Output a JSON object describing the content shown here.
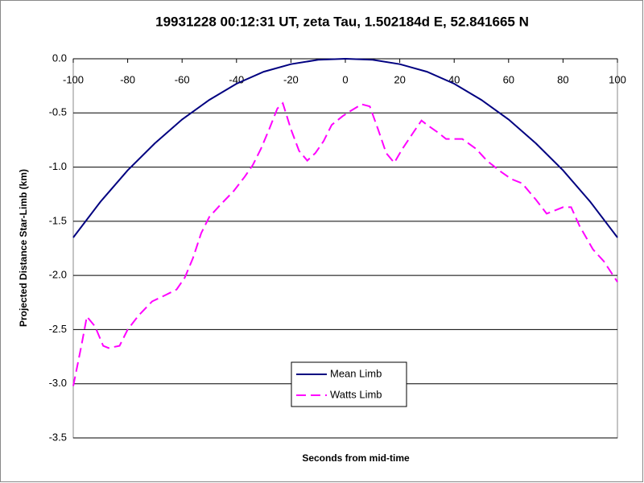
{
  "chart_data": {
    "type": "line",
    "title": "19931228 00:12:31 UT, zeta Tau, 1.502184d E, 52.841665 N",
    "x_label": "Seconds from mid-time",
    "y_label": "Projected Distance Star-Limb (km)",
    "xlim": [
      -100,
      100
    ],
    "xticks": [
      -100,
      -80,
      -60,
      -40,
      -20,
      0,
      20,
      40,
      60,
      80,
      100
    ],
    "ylim": [
      -3.5,
      0
    ],
    "yticks": [
      {
        "value": 0,
        "label": "0.0"
      },
      -0.5,
      {
        "value": -1,
        "label": "-1.0"
      },
      -1.5,
      {
        "value": -2,
        "label": "-2.0"
      },
      -2.5,
      {
        "value": -3,
        "label": "-3.0"
      },
      -3.5
    ],
    "grid": true,
    "legend": "bottom",
    "series": [
      {
        "name": "Mean Limb",
        "color": "#000080",
        "dash": "solid",
        "x": [
          -100,
          -90,
          -80,
          -70,
          -60,
          -50,
          -40,
          -30,
          -20,
          -10,
          0,
          10,
          20,
          30,
          40,
          50,
          60,
          70,
          80,
          90,
          100
        ],
        "values": [
          -1.65,
          -1.32,
          -1.03,
          -0.78,
          -0.56,
          -0.38,
          -0.23,
          -0.12,
          -0.05,
          -0.01,
          0,
          -0.01,
          -0.05,
          -0.12,
          -0.23,
          -0.38,
          -0.56,
          -0.78,
          -1.03,
          -1.32,
          -1.65
        ]
      },
      {
        "name": "Watts Limb",
        "color": "#ff00ff",
        "dash": "dashed",
        "x": [
          -100,
          -97,
          -95,
          -92,
          -89,
          -87,
          -83,
          -80,
          -76,
          -71,
          -66,
          -62,
          -59,
          -56,
          -53,
          -50,
          -46,
          -41,
          -37,
          -34,
          -31,
          -28,
          -25,
          -23,
          -20,
          -17,
          -14,
          -11,
          -8,
          -5,
          -1,
          2,
          6,
          9,
          12,
          15,
          18,
          21,
          25,
          28,
          30,
          34,
          37,
          43,
          48,
          52,
          57,
          61,
          65,
          70,
          74,
          77,
          80,
          83,
          86,
          91,
          95,
          100
        ],
        "values": [
          -3.02,
          -2.65,
          -2.38,
          -2.47,
          -2.65,
          -2.67,
          -2.65,
          -2.5,
          -2.37,
          -2.24,
          -2.18,
          -2.13,
          -2.02,
          -1.84,
          -1.61,
          -1.46,
          -1.35,
          -1.22,
          -1.09,
          -0.98,
          -0.83,
          -0.65,
          -0.46,
          -0.41,
          -0.65,
          -0.85,
          -0.94,
          -0.87,
          -0.76,
          -0.61,
          -0.53,
          -0.48,
          -0.42,
          -0.44,
          -0.65,
          -0.87,
          -0.96,
          -0.83,
          -0.68,
          -0.57,
          -0.61,
          -0.68,
          -0.74,
          -0.74,
          -0.83,
          -0.94,
          -1.04,
          -1.11,
          -1.15,
          -1.3,
          -1.43,
          -1.4,
          -1.37,
          -1.37,
          -1.54,
          -1.76,
          -1.87,
          -2.06
        ]
      }
    ]
  }
}
